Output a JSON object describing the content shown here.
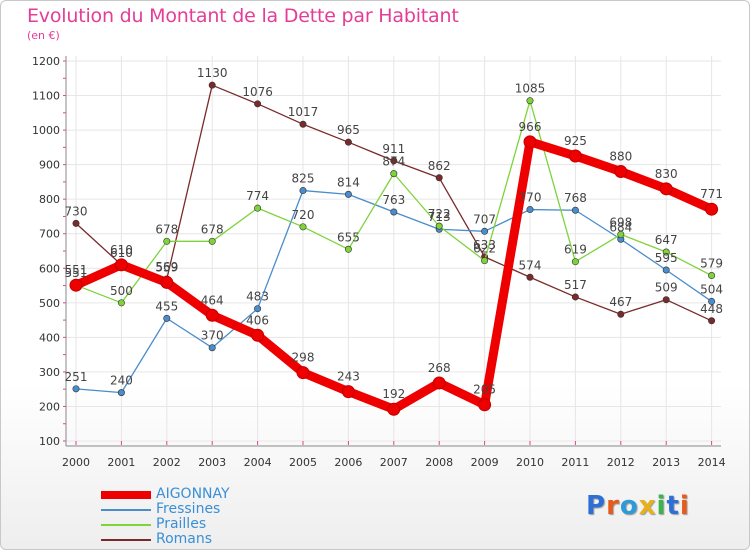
{
  "logo_text": "Proxiti",
  "chart_data": {
    "type": "line",
    "title": "Evolution du Montant de la Dette par Habitant",
    "subtitle": "(en €)",
    "xlabel": "",
    "ylabel": "",
    "x": [
      "2000",
      "2001",
      "2002",
      "2003",
      "2004",
      "2005",
      "2006",
      "2007",
      "2008",
      "2009",
      "2010",
      "2011",
      "2012",
      "2013",
      "2014"
    ],
    "ylim": [
      100,
      1200
    ],
    "yticks": [
      100,
      200,
      300,
      400,
      500,
      600,
      700,
      800,
      900,
      1000,
      1100,
      1200
    ],
    "grid": true,
    "legend_position": "bottom-left",
    "series": [
      {
        "name": "Romans",
        "color": "#7a2a2a",
        "values": [
          730,
          610,
          569,
          1130,
          1076,
          1017,
          965,
          911,
          862,
          633,
          574,
          517,
          467,
          509,
          448
        ]
      },
      {
        "name": "Fressines",
        "color": "#4a8ccc",
        "values": [
          251,
          240,
          455,
          370,
          483,
          825,
          814,
          763,
          713,
          707,
          770,
          768,
          684,
          595,
          504
        ]
      },
      {
        "name": "Prailles",
        "color": "#7ed33a",
        "values": [
          551,
          500,
          678,
          678,
          774,
          720,
          655,
          874,
          722,
          622,
          1085,
          619,
          698,
          647,
          579
        ]
      },
      {
        "name": "AIGONNAY",
        "color": "#ee0000",
        "values": [
          551,
          610,
          559,
          464,
          406,
          298,
          243,
          192,
          268,
          205,
          966,
          925,
          880,
          830,
          771
        ]
      }
    ],
    "legend": [
      "AIGONNAY",
      "Fressines",
      "Prailles",
      "Romans"
    ]
  }
}
